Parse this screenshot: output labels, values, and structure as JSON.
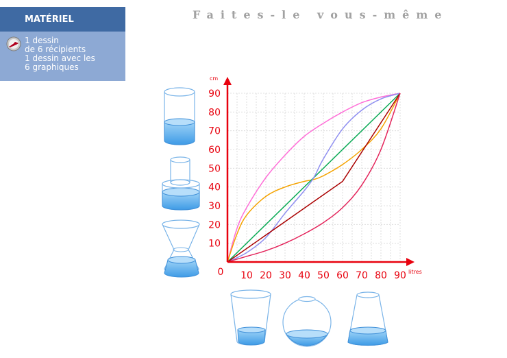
{
  "title": "Faites-le vous-même",
  "materiel": {
    "header": "MATÉRIEL",
    "icon": "compass-icon",
    "lines": [
      "1 dessin",
      "de 6 récipients",
      "1 dessin avec les",
      "6 graphiques"
    ]
  },
  "colors": {
    "panel_bg": "#8da9d4",
    "panel_header": "#3f6aa3",
    "axis": "#e8000d",
    "grid": "#d6d6d6",
    "water": "#63b4ef"
  },
  "chart_data": {
    "type": "line",
    "xlabel": "litres",
    "ylabel": "cm",
    "xlim": [
      0,
      90
    ],
    "ylim": [
      0,
      90
    ],
    "x_ticks": [
      "0",
      "10",
      "20",
      "30",
      "40",
      "50",
      "60",
      "70",
      "80",
      "90"
    ],
    "y_ticks": [
      "10",
      "20",
      "30",
      "40",
      "50",
      "60",
      "70",
      "80",
      "90"
    ],
    "grid": true,
    "legend": "none",
    "series": [
      {
        "color": "#ff6fd8",
        "x": [
          0,
          5,
          10,
          20,
          30,
          40,
          50,
          60,
          70,
          80,
          90
        ],
        "y": [
          0,
          18,
          29,
          45,
          57,
          67,
          74,
          80,
          85,
          88,
          90
        ]
      },
      {
        "color": "#f5a300",
        "x": [
          0,
          5,
          10,
          20,
          30,
          40,
          45,
          50,
          60,
          70,
          80,
          90
        ],
        "y": [
          0,
          15,
          25,
          35,
          40,
          43,
          44,
          46,
          52,
          60,
          71,
          90
        ]
      },
      {
        "color": "#0aaa55",
        "x": [
          0,
          90
        ],
        "y": [
          0,
          90
        ]
      },
      {
        "color": "#8f8ff0",
        "x": [
          0,
          10,
          20,
          30,
          40,
          45,
          50,
          60,
          70,
          80,
          90
        ],
        "y": [
          0,
          5,
          13,
          26,
          38,
          45,
          55,
          71,
          81,
          87,
          90
        ]
      },
      {
        "color": "#aa0000",
        "x": [
          0,
          60,
          90
        ],
        "y": [
          0,
          43,
          90
        ]
      },
      {
        "color": "#e4245b",
        "x": [
          0,
          10,
          20,
          30,
          40,
          50,
          60,
          70,
          80,
          90
        ],
        "y": [
          0,
          3,
          6,
          10,
          15,
          21,
          29,
          41,
          60,
          90
        ]
      }
    ]
  },
  "containers": [
    {
      "name": "cylinder-container",
      "shape": "cylinder"
    },
    {
      "name": "stepped-cylinder-container",
      "shape": "stepped-cylinder"
    },
    {
      "name": "hourglass-container",
      "shape": "hourglass"
    },
    {
      "name": "tapered-cup-container",
      "shape": "flared-cup"
    },
    {
      "name": "sphere-container",
      "shape": "sphere"
    },
    {
      "name": "cone-container",
      "shape": "cone"
    }
  ]
}
